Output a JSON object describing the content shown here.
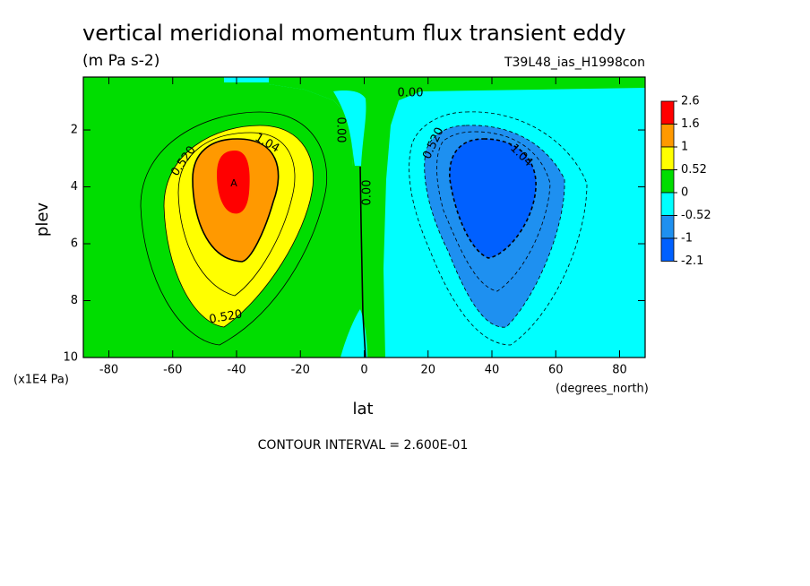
{
  "chart_data": {
    "type": "contour",
    "title": "vertical meridional momentum flux transient eddy",
    "subtitle": "(m Pa s-2)",
    "dataset": "T39L48_ias_H1998con",
    "xlabel": "lat",
    "xunits": "(degrees_north)",
    "ylabel": "plev",
    "yunits": "(x1E4 Pa)",
    "footnote": "CONTOUR INTERVAL = 2.600E-01",
    "xlim": [
      -88,
      88
    ],
    "xticks": [
      -80,
      -60,
      -40,
      -20,
      0,
      20,
      40,
      60,
      80
    ],
    "ylim": [
      10,
      0.14
    ],
    "yticks": [
      2,
      4,
      6,
      8,
      10
    ],
    "levels": [
      2.6,
      1.6,
      1,
      0.52,
      0,
      -0.52,
      -1,
      -2.1
    ],
    "colors": [
      "#ff0000",
      "#ff9900",
      "#ffff00",
      "#00dd00",
      "#00ffff",
      "#1e90f0",
      "#0060ff"
    ],
    "contour_labels": [
      "0.520",
      "1.04",
      "0.00",
      "0.00",
      "0.00",
      "0.520",
      "0.520",
      "-1.04"
    ],
    "extremum_label": "A"
  }
}
